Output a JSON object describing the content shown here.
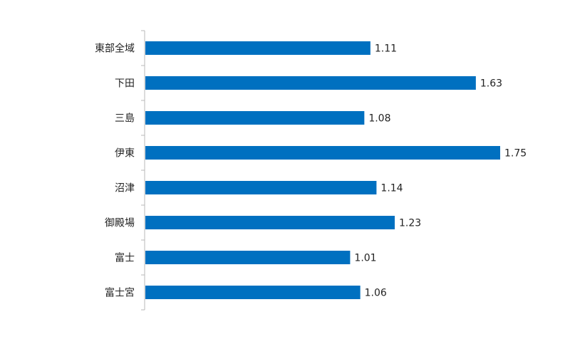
{
  "chart_data": {
    "type": "bar",
    "orientation": "horizontal",
    "categories": [
      "東部全域",
      "下田",
      "三島",
      "伊東",
      "沼津",
      "御殿場",
      "富士",
      "富士宮"
    ],
    "values": [
      1.11,
      1.63,
      1.08,
      1.75,
      1.14,
      1.23,
      1.01,
      1.06
    ],
    "value_labels": [
      "1.11",
      "1.63",
      "1.08",
      "1.75",
      "1.14",
      "1.23",
      "1.01",
      "1.06"
    ],
    "title": "",
    "xlabel": "",
    "ylabel": "",
    "xlim": [
      0,
      1.75
    ],
    "grid": false,
    "bar_color": "#0070C0"
  }
}
